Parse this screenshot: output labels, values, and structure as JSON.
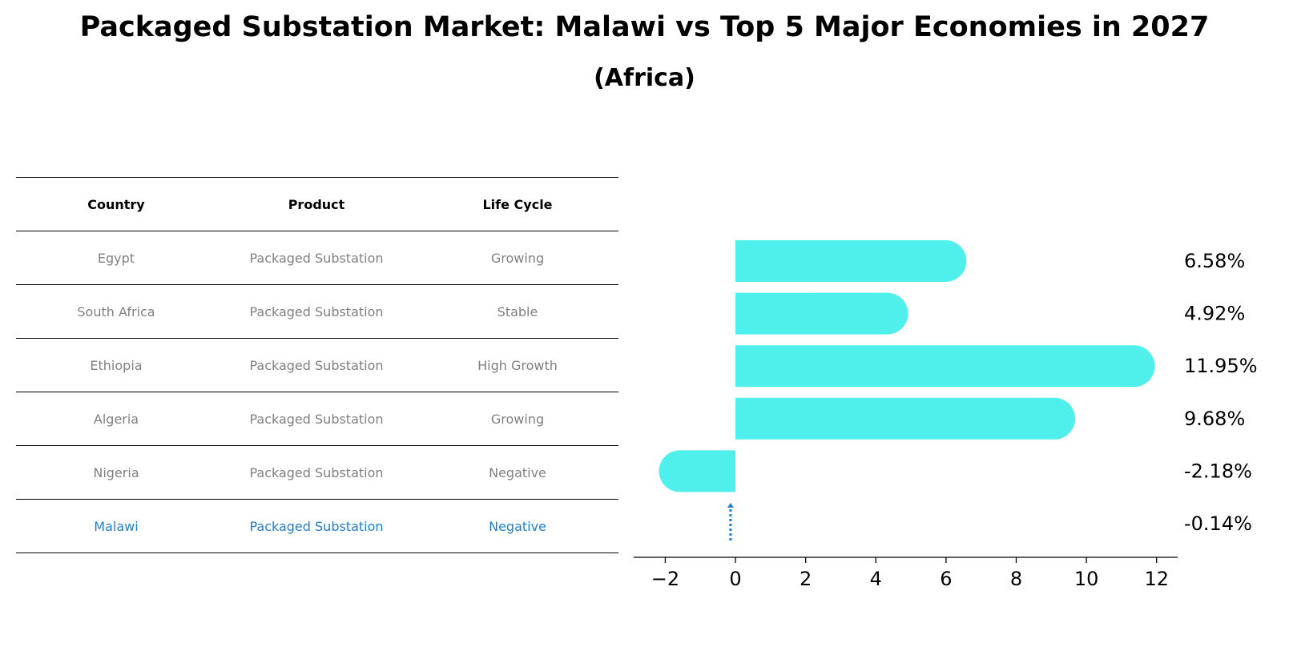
{
  "title": "Packaged Substation Market: Malawi vs Top 5 Major Economies in 2027",
  "subtitle": "(Africa)",
  "table": {
    "headers": [
      "Country",
      "Product",
      "Life Cycle"
    ],
    "rows": [
      {
        "country": "Egypt",
        "product": "Packaged Substation",
        "life_cycle": "Growing"
      },
      {
        "country": "South Africa",
        "product": "Packaged Substation",
        "life_cycle": "Stable"
      },
      {
        "country": "Ethiopia",
        "product": "Packaged Substation",
        "life_cycle": "High Growth"
      },
      {
        "country": "Algeria",
        "product": "Packaged Substation",
        "life_cycle": "Growing"
      },
      {
        "country": "Nigeria",
        "product": "Packaged Substation",
        "life_cycle": "Negative"
      },
      {
        "country": "Malawi",
        "product": "Packaged Substation",
        "life_cycle": "Negative"
      }
    ]
  },
  "colors": {
    "bar": "#4ff0ec",
    "highlight": "#1f7fd0",
    "muted_text": "#808080"
  },
  "chart_data": {
    "type": "bar",
    "orientation": "horizontal",
    "categories": [
      "Egypt",
      "South Africa",
      "Ethiopia",
      "Algeria",
      "Nigeria",
      "Malawi"
    ],
    "values": [
      6.58,
      4.92,
      11.95,
      9.68,
      -2.18,
      -0.14
    ],
    "value_labels": [
      "6.58%",
      "4.92%",
      "11.95%",
      "9.68%",
      "-2.18%",
      "-0.14%"
    ],
    "xlim": [
      -2.9,
      12.6
    ],
    "xticks": [
      -2,
      0,
      2,
      4,
      6,
      8,
      10,
      12
    ],
    "xtick_labels": [
      "−2",
      "0",
      "2",
      "4",
      "6",
      "8",
      "10",
      "12"
    ],
    "grid": false,
    "highlight_category": "Malawi"
  }
}
